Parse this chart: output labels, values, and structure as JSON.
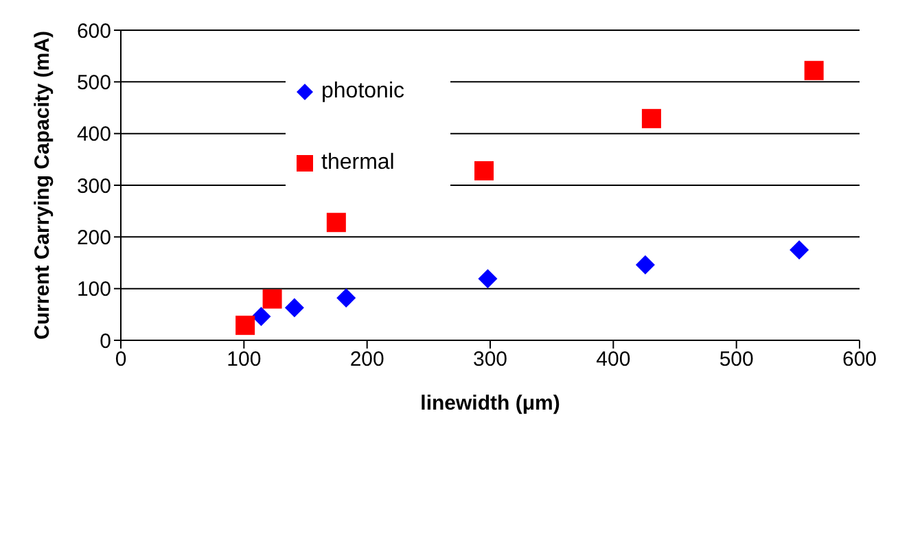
{
  "chart_data": {
    "type": "scatter",
    "xlabel": "linewidth (μm)",
    "ylabel": "Current Carrying Capacity (mA)",
    "xlim": [
      0,
      600
    ],
    "xticks": [
      0,
      100,
      200,
      300,
      400,
      500,
      600
    ],
    "ylim": [
      0,
      600
    ],
    "yticks": [
      0,
      100,
      200,
      300,
      400,
      500,
      600
    ],
    "grid": "y",
    "legend": "top left",
    "series": [
      {
        "name": "photonic",
        "color": "#0000ff",
        "marker": "diamond",
        "x": [
          114,
          141,
          183,
          298,
          426,
          551
        ],
        "values": [
          46,
          63,
          82,
          119,
          146,
          175
        ]
      },
      {
        "name": "thermal",
        "color": "#ff0000",
        "marker": "square",
        "x": [
          101,
          123,
          175,
          295,
          431,
          563
        ],
        "values": [
          29,
          80,
          228,
          328,
          429,
          522
        ]
      }
    ]
  }
}
